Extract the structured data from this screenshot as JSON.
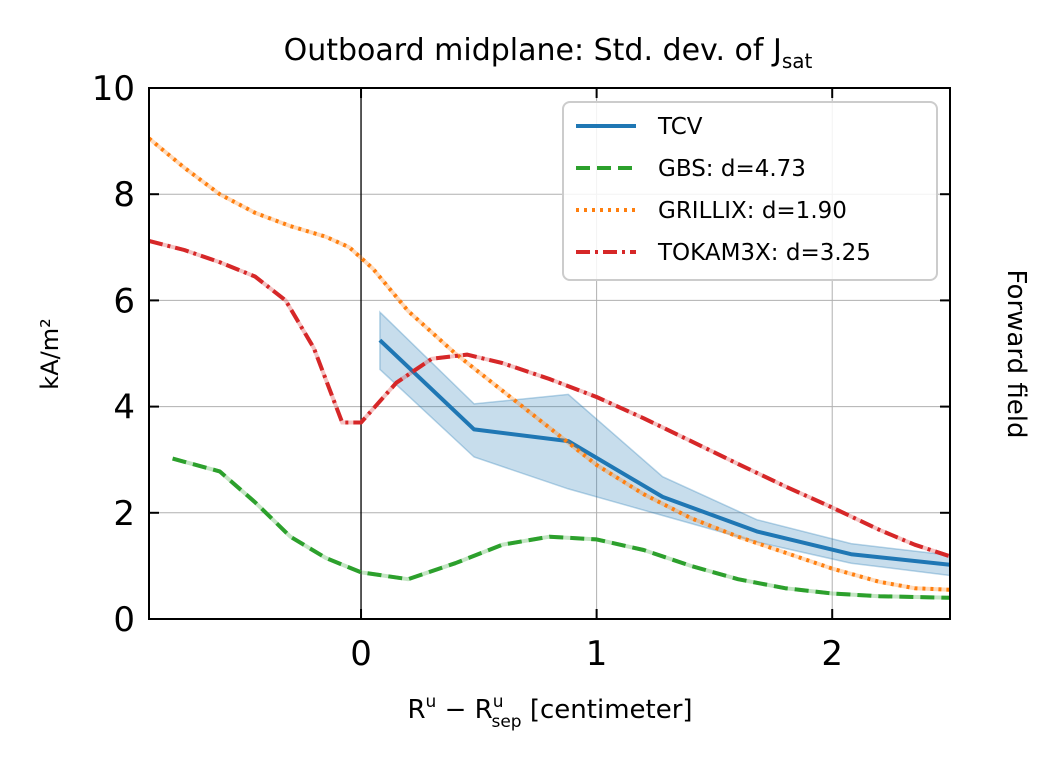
{
  "chart_data": {
    "type": "line",
    "title_main": "Outboard midplane: Std. dev. of J",
    "title_sub": "sat",
    "xlabel_main": "R",
    "xlabel_sup1": "u",
    "xlabel_minus": " − R",
    "xlabel_sup2": "u",
    "xlabel_sub2": "sep",
    "xlabel_unit": " [centimeter]",
    "ylabel": "kA/m²",
    "right_label": "Forward field",
    "xlim": [
      -0.9,
      2.5
    ],
    "ylim": [
      0,
      10
    ],
    "xticks": [
      0,
      1,
      2
    ],
    "yticks": [
      0,
      2,
      4,
      6,
      8,
      10
    ],
    "grid": true,
    "vline_x": 0,
    "legend_position": "top-right",
    "series": [
      {
        "name": "TCV",
        "color": "#1f77b4",
        "style": "solid",
        "x": [
          0.08,
          0.48,
          0.88,
          1.28,
          1.68,
          2.08,
          2.5
        ],
        "y": [
          5.25,
          3.57,
          3.35,
          2.3,
          1.65,
          1.22,
          1.02
        ],
        "band_upper": [
          5.78,
          4.05,
          4.23,
          2.68,
          1.87,
          1.42,
          1.2
        ],
        "band_lower": [
          4.7,
          3.05,
          2.45,
          1.95,
          1.45,
          1.05,
          0.82
        ]
      },
      {
        "name": "GBS: d=4.73",
        "color": "#2ca02c",
        "style": "dashed",
        "x": [
          -0.8,
          -0.6,
          -0.45,
          -0.3,
          -0.15,
          0.0,
          0.2,
          0.4,
          0.6,
          0.8,
          1.0,
          1.2,
          1.4,
          1.6,
          1.8,
          2.0,
          2.2,
          2.5
        ],
        "y": [
          3.02,
          2.78,
          2.2,
          1.55,
          1.15,
          0.88,
          0.75,
          1.05,
          1.4,
          1.55,
          1.5,
          1.3,
          1.0,
          0.75,
          0.58,
          0.48,
          0.43,
          0.4
        ]
      },
      {
        "name": "GRILLIX: d=1.90",
        "color": "#ff7f0e",
        "style": "dotted",
        "x": [
          -0.9,
          -0.75,
          -0.6,
          -0.45,
          -0.3,
          -0.15,
          -0.05,
          0.05,
          0.2,
          0.4,
          0.6,
          0.8,
          1.0,
          1.2,
          1.4,
          1.6,
          1.8,
          2.0,
          2.2,
          2.35,
          2.5
        ],
        "y": [
          9.05,
          8.5,
          8.0,
          7.65,
          7.4,
          7.2,
          7.0,
          6.6,
          5.8,
          5.0,
          4.3,
          3.6,
          2.9,
          2.35,
          1.9,
          1.55,
          1.25,
          0.95,
          0.7,
          0.58,
          0.55
        ]
      },
      {
        "name": "TOKAM3X: d=3.25",
        "color": "#d62728",
        "style": "dashdot",
        "x": [
          -0.9,
          -0.75,
          -0.6,
          -0.45,
          -0.32,
          -0.2,
          -0.08,
          0.0,
          0.15,
          0.3,
          0.45,
          0.6,
          0.8,
          1.0,
          1.2,
          1.4,
          1.6,
          1.8,
          2.0,
          2.2,
          2.35,
          2.5
        ],
        "y": [
          7.12,
          6.95,
          6.72,
          6.45,
          6.0,
          5.1,
          3.7,
          3.7,
          4.45,
          4.9,
          4.98,
          4.82,
          4.52,
          4.18,
          3.78,
          3.35,
          2.92,
          2.5,
          2.1,
          1.68,
          1.4,
          1.18
        ]
      }
    ]
  }
}
